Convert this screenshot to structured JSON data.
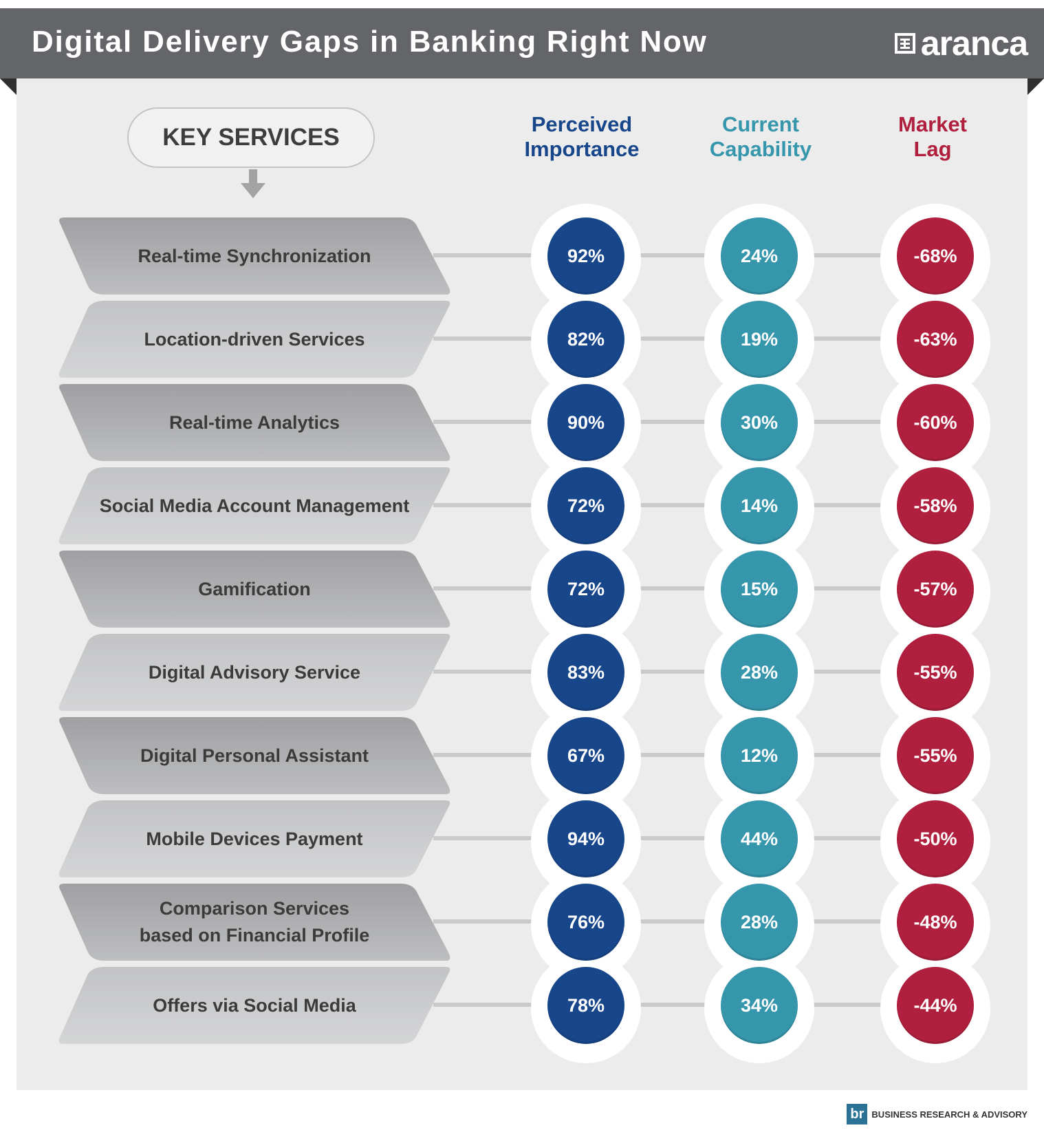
{
  "header": {
    "title": "Digital Delivery Gaps in Banking Right Now",
    "logo_text": "aranca"
  },
  "key_services_label": "KEY SERVICES",
  "columns": [
    {
      "label": "Perceived Importance",
      "line1": "Perceived",
      "line2": "Importance",
      "color": "#17468b"
    },
    {
      "label": "Current Capability",
      "line1": "Current",
      "line2": "Capability",
      "color": "#3596ac"
    },
    {
      "label": "Market Lag",
      "line1": "Market",
      "line2": "Lag",
      "color": "#b01f3d"
    }
  ],
  "services": [
    {
      "name": "Real-time Synchronization",
      "importance": "92%",
      "capability": "24%",
      "lag": "-68%"
    },
    {
      "name": "Location-driven Services",
      "importance": "82%",
      "capability": "19%",
      "lag": "-63%"
    },
    {
      "name": "Real-time Analytics",
      "importance": "90%",
      "capability": "30%",
      "lag": "-60%"
    },
    {
      "name": "Social Media Account Management",
      "importance": "72%",
      "capability": "14%",
      "lag": "-58%"
    },
    {
      "name": "Gamification",
      "importance": "72%",
      "capability": "15%",
      "lag": "-57%"
    },
    {
      "name": "Digital Advisory Service",
      "importance": "83%",
      "capability": "28%",
      "lag": "-55%"
    },
    {
      "name": "Digital Personal Assistant",
      "importance": "67%",
      "capability": "12%",
      "lag": "-55%"
    },
    {
      "name": "Mobile Devices Payment",
      "importance": "94%",
      "capability": "44%",
      "lag": "-50%"
    },
    {
      "name": "Comparison Services\nbased on Financial Profile",
      "importance": "76%",
      "capability": "28%",
      "lag": "-48%"
    },
    {
      "name": "Offers via Social Media",
      "importance": "78%",
      "capability": "34%",
      "lag": "-44%"
    }
  ],
  "footer": {
    "badge_letter": "br",
    "text": "BUSINESS RESEARCH & ADVISORY"
  }
}
